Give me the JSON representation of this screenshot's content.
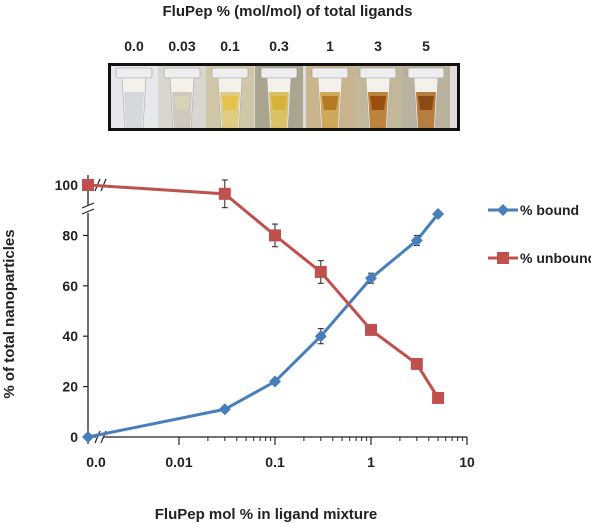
{
  "figure": {
    "title": "FluPep %  (mol/mol)  of total ligands",
    "tube_labels": [
      "0.0",
      "0.03",
      "0.1",
      "0.3",
      "1",
      "3",
      "5"
    ]
  },
  "chart_data": {
    "type": "line",
    "xlabel": "FluPep mol % in ligand mixture",
    "ylabel": "% of total nanoparticles",
    "x_scale": "log",
    "x_ticks": [
      "0.0",
      "0.01",
      "0.1",
      "1",
      "10"
    ],
    "y_ticks": [
      0,
      20,
      40,
      60,
      80,
      100
    ],
    "ylim": [
      0,
      100
    ],
    "xlim_log": [
      0.01,
      10
    ],
    "x_axis_break": true,
    "y_axis_break": true,
    "legend_position": "right",
    "series": [
      {
        "name": "% bound",
        "color": "#4A7EBB",
        "marker": "diamond",
        "x": [
          0,
          0.03,
          0.1,
          0.3,
          1,
          3,
          5
        ],
        "y": [
          0,
          11,
          22,
          40,
          63,
          78,
          88.5
        ],
        "err": [
          0,
          0,
          0,
          3,
          2,
          2,
          0
        ]
      },
      {
        "name": "% unbound",
        "color": "#C0504D",
        "marker": "square",
        "x": [
          0,
          0.03,
          0.1,
          0.3,
          1,
          3,
          5
        ],
        "y": [
          100,
          96.5,
          80,
          65.5,
          42.5,
          29,
          15.5
        ],
        "err": [
          0,
          5.5,
          4.5,
          4.5,
          0,
          0,
          0
        ]
      }
    ]
  }
}
